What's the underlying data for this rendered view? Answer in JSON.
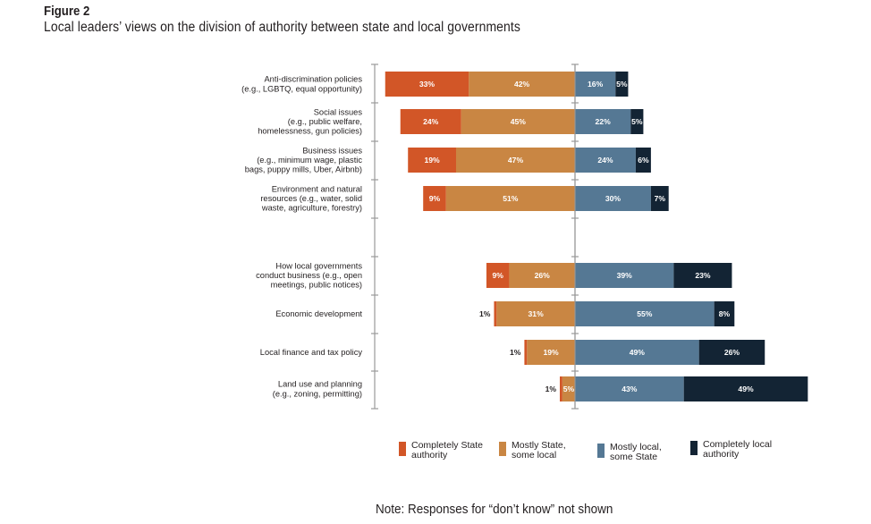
{
  "figure": {
    "number": "Figure 2",
    "title": "Local leaders’ views on the division of authority between state and local governments",
    "note": "Note: Responses for “don’t know” not shown"
  },
  "chart_data": {
    "type": "bar",
    "orientation": "horizontal",
    "stacked": "diverging",
    "title": "Local leaders’ views on the division of authority between state and local governments",
    "xlabel": "",
    "ylabel": "",
    "grid": false,
    "legend_position": "bottom",
    "categories": [
      [
        "Anti-discrimination policies",
        "(e.g., LGBTQ, equal opportunity)"
      ],
      [
        "Social issues",
        "(e.g., public welfare,",
        "homelessness, gun policies)"
      ],
      [
        "Business issues",
        "(e.g., minimum wage, plastic",
        "bags, puppy mills, Uber, Airbnb)"
      ],
      [
        "Environment and natural",
        "resources (e.g., water, solid",
        "waste, agriculture, forestry)"
      ],
      [
        "How local governments",
        "conduct business (e.g., open",
        "meetings, public notices)"
      ],
      [
        "Economic development"
      ],
      [
        "Local finance and tax policy"
      ],
      [
        "Land use and planning",
        "(e.g., zoning, permitting)"
      ]
    ],
    "groups": [
      [
        0,
        1,
        2,
        3
      ],
      [
        4,
        5,
        6,
        7
      ]
    ],
    "series": [
      {
        "name": "Completely State authority",
        "legend": [
          "Completely State",
          "authority"
        ],
        "side": "left",
        "color": "#D25627",
        "values": [
          33,
          24,
          19,
          9,
          9,
          1,
          1,
          1
        ]
      },
      {
        "name": "Mostly State, some local",
        "legend": [
          "Mostly State,",
          "some local"
        ],
        "side": "left",
        "color": "#C98643",
        "values": [
          42,
          45,
          47,
          51,
          26,
          31,
          19,
          5
        ]
      },
      {
        "name": "Mostly local, some State",
        "legend": [
          "Mostly local,",
          "some State"
        ],
        "side": "right",
        "color": "#557894",
        "values": [
          16,
          22,
          24,
          30,
          39,
          55,
          49,
          43
        ]
      },
      {
        "name": "Completely local authority",
        "legend": [
          "Completely local",
          "authority"
        ],
        "side": "right",
        "color": "#132434",
        "values": [
          5,
          5,
          6,
          7,
          23,
          8,
          26,
          49
        ]
      }
    ],
    "value_suffix": "%",
    "xlim": [
      -80,
      95
    ]
  }
}
